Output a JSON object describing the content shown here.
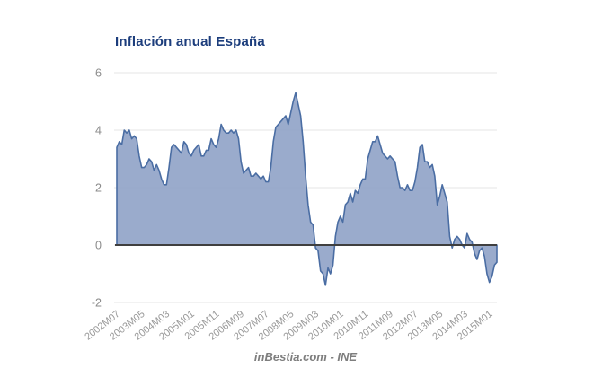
{
  "page": {
    "background": "#ffffff"
  },
  "header": {
    "title": "Inflación anual España"
  },
  "footer": {
    "caption": "inBestia.com - INE"
  },
  "chart_data": {
    "type": "area",
    "title": "Inflación anual España",
    "source_caption": "inBestia.com - INE",
    "xlabel": "",
    "ylabel": "",
    "x_unit": "month",
    "x_start": "2002M07",
    "x_end": "2015M04",
    "x_tick_interval_points": 10,
    "x_tick_labels": [
      "2002M07",
      "2003M05",
      "2004M03",
      "2005M01",
      "2005M11",
      "2006M09",
      "2007M07",
      "2008M05",
      "2009M03",
      "2010M01",
      "2010M11",
      "2011M09",
      "2012M07",
      "2013M05",
      "2014M03",
      "2015M01"
    ],
    "y_ticks": [
      6,
      4,
      2,
      0,
      -2
    ],
    "ylim": [
      -2,
      6
    ],
    "grid": true,
    "legend": false,
    "values": [
      3.4,
      3.6,
      3.5,
      4.0,
      3.9,
      4.0,
      3.7,
      3.8,
      3.7,
      3.1,
      2.7,
      2.7,
      2.8,
      3.0,
      2.9,
      2.6,
      2.8,
      2.6,
      2.3,
      2.1,
      2.1,
      2.7,
      3.4,
      3.5,
      3.4,
      3.3,
      3.2,
      3.6,
      3.5,
      3.2,
      3.1,
      3.3,
      3.4,
      3.5,
      3.1,
      3.1,
      3.3,
      3.3,
      3.7,
      3.5,
      3.4,
      3.7,
      4.2,
      4.0,
      3.9,
      3.9,
      4.0,
      3.9,
      4.0,
      3.7,
      2.9,
      2.5,
      2.6,
      2.7,
      2.4,
      2.4,
      2.5,
      2.4,
      2.3,
      2.4,
      2.2,
      2.2,
      2.7,
      3.6,
      4.1,
      4.2,
      4.3,
      4.4,
      4.5,
      4.2,
      4.6,
      5.0,
      5.3,
      4.9,
      4.5,
      3.6,
      2.4,
      1.4,
      0.8,
      0.7,
      -0.1,
      -0.2,
      -0.9,
      -1.0,
      -1.4,
      -0.8,
      -1.0,
      -0.7,
      0.3,
      0.8,
      1.0,
      0.8,
      1.4,
      1.5,
      1.8,
      1.5,
      1.9,
      1.8,
      2.1,
      2.3,
      2.3,
      3.0,
      3.3,
      3.6,
      3.6,
      3.8,
      3.5,
      3.2,
      3.1,
      3.0,
      3.1,
      3.0,
      2.9,
      2.4,
      2.0,
      2.0,
      1.9,
      2.1,
      1.9,
      1.9,
      2.2,
      2.7,
      3.4,
      3.5,
      2.9,
      2.9,
      2.7,
      2.8,
      2.4,
      1.4,
      1.7,
      2.1,
      1.8,
      1.5,
      0.3,
      -0.1,
      0.2,
      0.3,
      0.2,
      0.0,
      -0.1,
      0.4,
      0.2,
      0.1,
      -0.3,
      -0.5,
      -0.2,
      -0.1,
      -0.4,
      -1.0,
      -1.3,
      -1.1,
      -0.7,
      -0.6
    ],
    "colors": {
      "area_fill": "#92a5c8",
      "area_fill_opacity": 0.93,
      "line_stroke": "#4a6da3",
      "zero_line": "#3f3f3f",
      "gridline": "#e4e4e4",
      "y_tick_label": "#8b8b8b",
      "x_tick_label": "#9a9a9a",
      "title": "#1c3d7c",
      "footer": "#7e7e7e"
    }
  }
}
